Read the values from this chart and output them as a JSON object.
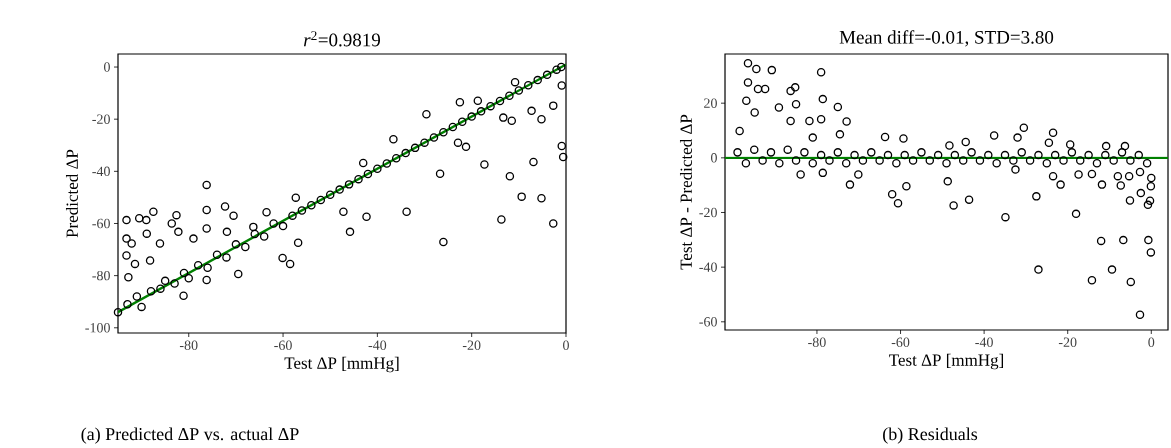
{
  "chart_data": [
    {
      "type": "scatter",
      "title": "*r*$^{2}$=0.9819",
      "xlabel": "Test ΔP [mmHg]",
      "ylabel": "Predicted ΔP",
      "xlim": [
        -95,
        0
      ],
      "ylim": [
        -102,
        5
      ],
      "xticks": [
        -80,
        -60,
        -40,
        -20,
        0
      ],
      "yticks": [
        -100,
        -80,
        -60,
        -40,
        -20,
        0
      ],
      "annotations": [
        "(a) Predicted ΔP vs. actual ΔP"
      ],
      "series": [
        {
          "type": "line",
          "color": "#008000",
          "x": [
            -95,
            0
          ],
          "values": [
            -94,
            1
          ]
        },
        {
          "color": "#000000",
          "marker": "circle",
          "x": [
            -95,
            -93,
            -91,
            -90,
            -88,
            -86,
            -85,
            -83,
            -81,
            -80,
            -78,
            -76,
            -74,
            -72,
            -70,
            -68,
            -66,
            -64,
            -62,
            -60,
            -58,
            -56,
            -54,
            -52,
            -50,
            -48,
            -46,
            -44,
            -42,
            -40,
            -38,
            -36,
            -34,
            -32,
            -30,
            -28,
            -26,
            -24,
            -22,
            -20,
            -18,
            -16,
            -14,
            -12,
            -10,
            -8,
            -6,
            -4,
            -2,
            -1,
            -93.2,
            -89.0,
            -90.5,
            -93.2,
            -92.1,
            -93.2,
            -91.4,
            -87.5,
            -86.1,
            -88.9,
            -82.6,
            -83.6,
            -82.2,
            -79.0,
            -76.2,
            -76.2,
            -76.2,
            -72.3,
            -70.5,
            -71.9,
            -63.5,
            -66.3,
            -60.1,
            -58.5,
            -56.8,
            -69.5,
            -81.1,
            -76.2,
            -88.2,
            -92.8,
            -57.3,
            -47.2,
            -45.8,
            -42.3,
            -43.0,
            -36.6,
            -33.8,
            -29.6,
            -26.7,
            -26.0,
            -22.5,
            -22.9,
            -21.2,
            -18.7,
            -17.3,
            -11.9,
            -9.4,
            -13.7,
            -13.3,
            -11.5,
            -6.9,
            -5.2,
            -5.2,
            -2.7,
            -0.9,
            -0.6,
            -2.7,
            -7.3,
            -0.9,
            -10.8
          ],
          "values": [
            -94,
            -91,
            -88,
            -92,
            -86,
            -85,
            -82,
            -83,
            -79,
            -81,
            -76,
            -77,
            -72,
            -73,
            -68,
            -69,
            -64,
            -65,
            -60,
            -61,
            -57,
            -55,
            -53,
            -51,
            -49,
            -47,
            -45,
            -43,
            -41,
            -39,
            -37,
            -35,
            -33,
            -31,
            -29,
            -27,
            -25,
            -23,
            -21,
            -19,
            -17,
            -15,
            -13,
            -11,
            -9,
            -7,
            -5,
            -3,
            -1,
            0,
            -58.7,
            -58.7,
            -58,
            -65.8,
            -67.7,
            -72.3,
            -75.5,
            -55.5,
            -67.7,
            -63.9,
            -56.8,
            -60,
            -63.2,
            -65.8,
            -45.2,
            -54.8,
            -61.9,
            -53.5,
            -57,
            -63.2,
            -55.7,
            -61.3,
            -73.2,
            -75.5,
            -67.4,
            -79.4,
            -87.7,
            -81.7,
            -74.2,
            -80.6,
            -50.1,
            -55.5,
            -63.2,
            -57.4,
            -36.8,
            -27.7,
            -55.5,
            -18.1,
            -40.9,
            -67.1,
            -13.5,
            -29,
            -30.6,
            -12.9,
            -37.4,
            -41.9,
            -49.7,
            -58.5,
            -19.4,
            -20.6,
            -36.4,
            -50.3,
            -20,
            -60,
            -30.3,
            -34.5,
            -14.8,
            -16.8,
            -7.1,
            -5.8
          ]
        }
      ]
    },
    {
      "type": "scatter",
      "title": "Mean diff=-0.01, STD=3.80",
      "xlabel": "Test ΔP [mmHg]",
      "ylabel": "Test ΔP - Predicted ΔP",
      "xlim": [
        -102,
        4
      ],
      "ylim": [
        -63,
        38
      ],
      "xticks": [
        -80,
        -60,
        -40,
        -20,
        0
      ],
      "yticks": [
        -60,
        -40,
        -20,
        0,
        20
      ],
      "annotations": [
        "(b) Residuals"
      ],
      "ref_lines": [
        {
          "axis": "y",
          "value": 0,
          "color": "#008000"
        }
      ],
      "series": [
        {
          "color": "#000000",
          "marker": "circle",
          "x": [
            -99,
            -97,
            -95,
            -93,
            -91,
            -89,
            -87,
            -85,
            -83,
            -81,
            -79,
            -77,
            -75,
            -73,
            -71,
            -69,
            -67,
            -65,
            -63,
            -61,
            -59,
            -57,
            -55,
            -53,
            -51,
            -49,
            -47,
            -45,
            -43,
            -41,
            -39,
            -37,
            -35,
            -33,
            -31,
            -29,
            -27,
            -25,
            -23,
            -21,
            -19,
            -17,
            -15,
            -13,
            -11,
            -9,
            -7,
            -5,
            -3,
            -1,
            -96.5,
            -96.5,
            -96.9,
            -94.5,
            -94.1,
            -90.8,
            -92.4,
            -94.9,
            -98.5,
            -86.3,
            -85.2,
            -85.0,
            -89.1,
            -86.3,
            -81.8,
            -79.0,
            -78.6,
            -79.0,
            -75.0,
            -72.9,
            -74.5,
            -81.0,
            -63.7,
            -59.3,
            -83.9,
            -78.6,
            -72.1,
            -70.1,
            -62.0,
            -60.6,
            -58.6,
            -48.7,
            -47.3,
            -43.6,
            -44.4,
            -48.3,
            -37.6,
            -34.9,
            -32.5,
            -32.0,
            -30.5,
            -27.5,
            -27.0,
            -24.5,
            -23.5,
            -23.5,
            -21.7,
            -19.4,
            -18.0,
            -17.4,
            -14.2,
            -14.2,
            -12.0,
            -11.8,
            -10.8,
            -9.4,
            -8.0,
            -7.3,
            -6.7,
            -6.3,
            -5.3,
            -5.1,
            -4.9,
            -2.7,
            -2.5,
            -0.8,
            -0.3,
            -0.7,
            -0.1,
            -2.7,
            0,
            -0.1
          ],
          "values": [
            2,
            -2,
            3,
            -1,
            2,
            -2,
            3,
            -1,
            2,
            -2,
            1,
            -1,
            2,
            -2,
            1,
            -1,
            2,
            -1,
            1,
            -2,
            1,
            -1,
            2,
            -1,
            1,
            -2,
            1,
            -1,
            2,
            -1,
            1,
            -2,
            1,
            -1,
            2,
            -1,
            1,
            -2,
            1,
            -1,
            2,
            -1,
            1,
            -2,
            1,
            -1,
            2,
            -1,
            1,
            -2,
            34.6,
            27.6,
            20.9,
            32.5,
            25.2,
            32.1,
            25.2,
            16.6,
            9.8,
            24.5,
            25.8,
            19.6,
            18.4,
            13.5,
            13.5,
            31.3,
            21.5,
            14.1,
            18.6,
            13.3,
            8.6,
            7.4,
            7.6,
            7.1,
            -6.1,
            -5.5,
            -9.8,
            -6.1,
            -13.3,
            -16.6,
            -10.4,
            -8.6,
            -17.4,
            -15.3,
            5.8,
            4.5,
            8.2,
            -21.7,
            -4.3,
            7.4,
            11.0,
            -14.1,
            -40.9,
            5.5,
            9.2,
            -6.7,
            -9.8,
            4.9,
            -20.5,
            -6.1,
            -5.9,
            -44.8,
            -30.4,
            -9.8,
            4.3,
            -40.9,
            -6.7,
            -10.1,
            -30.1,
            4.3,
            -6.7,
            -15.6,
            -45.4,
            -5.2,
            -12.9,
            -17.2,
            -15.7,
            -30.1,
            -34.6,
            -57.4,
            -7.4,
            -10.4
          ]
        }
      ]
    }
  ]
}
